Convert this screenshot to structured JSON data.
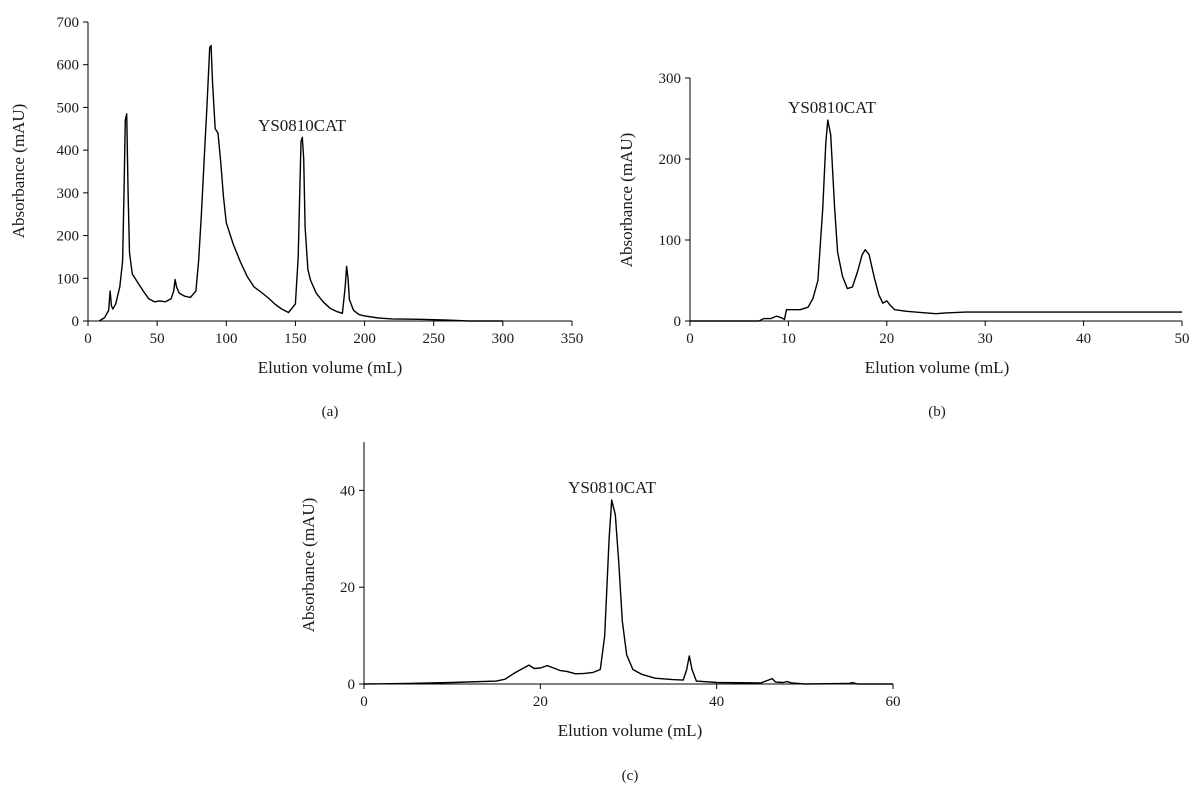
{
  "chart_data": [
    {
      "panel": "(a)",
      "type": "line",
      "xlabel": "Elution volume (mL)",
      "ylabel": "Absorbance (mAU)",
      "xlim": [
        0,
        350
      ],
      "ylim": [
        0,
        700
      ],
      "xticks": [
        0,
        50,
        100,
        150,
        200,
        250,
        300,
        350
      ],
      "yticks": [
        0,
        100,
        200,
        300,
        400,
        500,
        600,
        700
      ],
      "annotations": [
        {
          "text": "YS0810CAT",
          "x": 155,
          "y": 430
        }
      ],
      "series": [
        {
          "points": [
            [
              8,
              0
            ],
            [
              12,
              8
            ],
            [
              15,
              25
            ],
            [
              16,
              70
            ],
            [
              17,
              35
            ],
            [
              18,
              28
            ],
            [
              20,
              40
            ],
            [
              23,
              80
            ],
            [
              25,
              140
            ],
            [
              26,
              300
            ],
            [
              27,
              470
            ],
            [
              28,
              485
            ],
            [
              29,
              300
            ],
            [
              30,
              160
            ],
            [
              32,
              110
            ],
            [
              36,
              90
            ],
            [
              40,
              70
            ],
            [
              44,
              52
            ],
            [
              48,
              45
            ],
            [
              52,
              47
            ],
            [
              56,
              45
            ],
            [
              60,
              52
            ],
            [
              62,
              70
            ],
            [
              63,
              97
            ],
            [
              64,
              80
            ],
            [
              66,
              65
            ],
            [
              70,
              58
            ],
            [
              74,
              55
            ],
            [
              78,
              70
            ],
            [
              80,
              140
            ],
            [
              82,
              250
            ],
            [
              84,
              380
            ],
            [
              86,
              500
            ],
            [
              88,
              640
            ],
            [
              89,
              645
            ],
            [
              90,
              560
            ],
            [
              92,
              450
            ],
            [
              94,
              440
            ],
            [
              96,
              370
            ],
            [
              98,
              290
            ],
            [
              100,
              230
            ],
            [
              105,
              180
            ],
            [
              110,
              140
            ],
            [
              115,
              105
            ],
            [
              120,
              80
            ],
            [
              125,
              68
            ],
            [
              130,
              55
            ],
            [
              135,
              40
            ],
            [
              140,
              28
            ],
            [
              145,
              20
            ],
            [
              150,
              40
            ],
            [
              152,
              150
            ],
            [
              154,
              420
            ],
            [
              155,
              430
            ],
            [
              156,
              380
            ],
            [
              157,
              220
            ],
            [
              159,
              120
            ],
            [
              161,
              95
            ],
            [
              165,
              65
            ],
            [
              170,
              45
            ],
            [
              175,
              30
            ],
            [
              180,
              22
            ],
            [
              184,
              18
            ],
            [
              186,
              80
            ],
            [
              187,
              128
            ],
            [
              188,
              100
            ],
            [
              189,
              50
            ],
            [
              192,
              25
            ],
            [
              196,
              15
            ],
            [
              200,
              12
            ],
            [
              210,
              7
            ],
            [
              220,
              5
            ],
            [
              240,
              4
            ],
            [
              260,
              2
            ],
            [
              275,
              0
            ],
            [
              300,
              0
            ]
          ]
        }
      ]
    },
    {
      "panel": "(b)",
      "type": "line",
      "xlabel": "Elution volume (mL)",
      "ylabel": "Absorbance (mAU)",
      "xlim": [
        0,
        50
      ],
      "ylim": [
        0,
        300
      ],
      "xticks": [
        0,
        10,
        20,
        30,
        40,
        50
      ],
      "yticks": [
        0,
        100,
        200,
        300
      ],
      "annotations": [
        {
          "text": "YS0810CAT",
          "x": 14,
          "y": 248
        }
      ],
      "series": [
        {
          "points": [
            [
              0,
              0
            ],
            [
              7,
              0
            ],
            [
              7.5,
              3
            ],
            [
              8.2,
              3
            ],
            [
              8.8,
              6
            ],
            [
              9.3,
              4
            ],
            [
              9.6,
              2
            ],
            [
              9.8,
              14
            ],
            [
              10.5,
              14
            ],
            [
              11.2,
              14
            ],
            [
              12,
              17
            ],
            [
              12.5,
              28
            ],
            [
              13,
              50
            ],
            [
              13.5,
              140
            ],
            [
              13.8,
              220
            ],
            [
              14,
              248
            ],
            [
              14.3,
              230
            ],
            [
              14.7,
              140
            ],
            [
              15,
              85
            ],
            [
              15.5,
              55
            ],
            [
              16,
              40
            ],
            [
              16.5,
              42
            ],
            [
              17,
              60
            ],
            [
              17.5,
              82
            ],
            [
              17.8,
              88
            ],
            [
              18.2,
              82
            ],
            [
              18.7,
              55
            ],
            [
              19.2,
              32
            ],
            [
              19.6,
              22
            ],
            [
              20,
              25
            ],
            [
              20.3,
              20
            ],
            [
              20.8,
              14
            ],
            [
              22,
              12
            ],
            [
              24,
              10
            ],
            [
              25,
              9
            ],
            [
              26,
              10
            ],
            [
              28,
              11
            ],
            [
              32,
              11
            ],
            [
              40,
              11
            ],
            [
              50,
              11
            ]
          ]
        }
      ]
    },
    {
      "panel": "(c)",
      "type": "line",
      "xlabel": "Elution volume (mL)",
      "ylabel": "Absorbance (mAU)",
      "xlim": [
        0,
        60
      ],
      "ylim": [
        0,
        50
      ],
      "xticks": [
        0,
        20,
        40,
        60
      ],
      "yticks": [
        0,
        20,
        40
      ],
      "annotations": [
        {
          "text": "YS0810CAT",
          "x": 28,
          "y": 38
        }
      ],
      "series": [
        {
          "points": [
            [
              0,
              0
            ],
            [
              5,
              0.1
            ],
            [
              10,
              0.3
            ],
            [
              15,
              0.6
            ],
            [
              16,
              1
            ],
            [
              17,
              2.2
            ],
            [
              18,
              3.2
            ],
            [
              18.7,
              3.9
            ],
            [
              19.3,
              3.2
            ],
            [
              20,
              3.3
            ],
            [
              20.8,
              3.8
            ],
            [
              21.5,
              3.3
            ],
            [
              22.2,
              2.8
            ],
            [
              23,
              2.6
            ],
            [
              24,
              2.1
            ],
            [
              25,
              2.2
            ],
            [
              26,
              2.4
            ],
            [
              26.8,
              3
            ],
            [
              27.3,
              10
            ],
            [
              27.8,
              30
            ],
            [
              28.1,
              38
            ],
            [
              28.5,
              35
            ],
            [
              28.9,
              25
            ],
            [
              29.3,
              13
            ],
            [
              29.8,
              6
            ],
            [
              30.5,
              3
            ],
            [
              31.5,
              2
            ],
            [
              33,
              1.2
            ],
            [
              35,
              0.9
            ],
            [
              36.2,
              0.8
            ],
            [
              36.6,
              3
            ],
            [
              36.9,
              5.8
            ],
            [
              37.2,
              3
            ],
            [
              37.7,
              0.6
            ],
            [
              40,
              0.3
            ],
            [
              45,
              0.2
            ],
            [
              46,
              0.9
            ],
            [
              46.3,
              1.1
            ],
            [
              46.7,
              0.4
            ],
            [
              47.5,
              0.3
            ],
            [
              48,
              0.5
            ],
            [
              48.5,
              0.2
            ],
            [
              50,
              0
            ],
            [
              55,
              0.1
            ],
            [
              55.4,
              0.3
            ],
            [
              56,
              0
            ],
            [
              60,
              0
            ]
          ]
        }
      ]
    }
  ]
}
